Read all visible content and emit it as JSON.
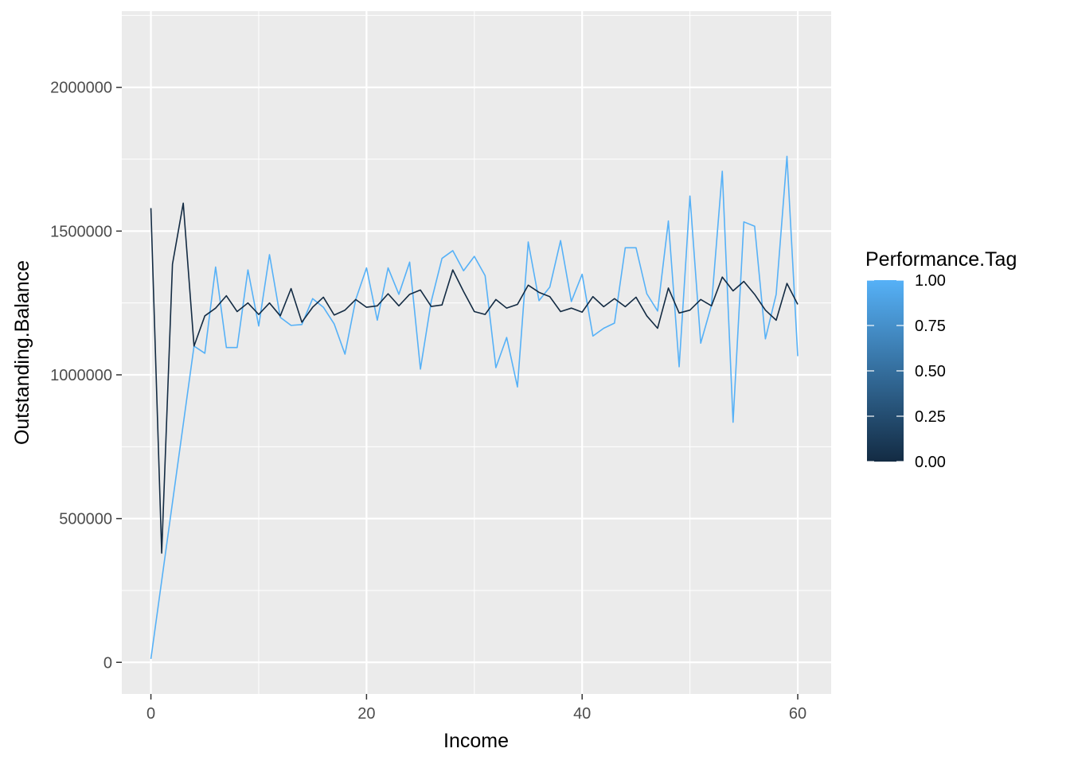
{
  "chart_data": {
    "type": "line",
    "title": "",
    "xlabel": "Income",
    "ylabel": "Outstanding.Balance",
    "xlim": [
      -2.7,
      63.1
    ],
    "ylim": [
      -110000,
      2265000
    ],
    "x_ticks": [
      0,
      20,
      40,
      60
    ],
    "y_ticks": [
      0,
      500000,
      1000000,
      1500000,
      2000000
    ],
    "y_tick_labels": [
      "0",
      "500000",
      "1000000",
      "1500000",
      "2000000"
    ],
    "grid": true,
    "legend": {
      "title": "Performance.Tag",
      "placement": "right",
      "ticks": [
        "1.00",
        "0.75",
        "0.50",
        "0.25",
        "0.00"
      ],
      "tick_values": [
        1.0,
        0.75,
        0.5,
        0.25,
        0.0
      ],
      "low_color": "#132B43",
      "high_color": "#56B1F7"
    },
    "colors": {
      "panel": "#EBEBEB",
      "grid": "#FFFFFF",
      "tag0": "#132B43",
      "tag1": "#56B1F7"
    },
    "series": [
      {
        "tag": 0,
        "x": [
          0,
          1,
          2,
          3,
          4,
          5,
          6,
          7,
          8,
          9,
          10,
          11,
          12,
          13,
          14,
          15,
          16,
          17,
          18,
          19,
          20,
          21,
          22,
          23,
          24,
          25,
          26,
          27,
          28,
          29,
          30,
          31,
          32,
          33,
          34,
          35,
          36,
          37,
          38,
          39,
          40,
          41,
          42,
          43,
          44,
          45,
          46,
          47,
          48,
          49,
          50,
          51,
          52,
          53,
          54,
          55,
          56,
          57,
          58,
          59,
          60
        ],
        "y": [
          1580000,
          380000,
          1385000,
          1597000,
          1100000,
          1205000,
          1232000,
          1275000,
          1220000,
          1250000,
          1210000,
          1250000,
          1205000,
          1300000,
          1183000,
          1235000,
          1270000,
          1208000,
          1225000,
          1262000,
          1235000,
          1240000,
          1282000,
          1240000,
          1280000,
          1295000,
          1238000,
          1243000,
          1365000,
          1290000,
          1220000,
          1210000,
          1262000,
          1232000,
          1245000,
          1312000,
          1287000,
          1272000,
          1220000,
          1232000,
          1218000,
          1272000,
          1237000,
          1265000,
          1237000,
          1270000,
          1205000,
          1162000,
          1302000,
          1215000,
          1225000,
          1262000,
          1240000,
          1340000,
          1292000,
          1325000,
          1280000,
          1225000,
          1190000,
          1318000,
          1245000
        ]
      },
      {
        "tag": 1,
        "x": [
          0,
          4,
          5,
          6,
          7,
          8,
          9,
          10,
          11,
          12,
          13,
          14,
          15,
          16,
          17,
          18,
          19,
          20,
          21,
          22,
          23,
          24,
          25,
          26,
          27,
          28,
          29,
          30,
          31,
          32,
          33,
          34,
          35,
          36,
          37,
          38,
          39,
          40,
          41,
          42,
          43,
          44,
          45,
          46,
          47,
          48,
          49,
          50,
          51,
          52,
          53,
          54,
          55,
          56,
          57,
          58,
          59,
          60
        ],
        "y": [
          12000,
          1100000,
          1075000,
          1375000,
          1095000,
          1095000,
          1365000,
          1170000,
          1418000,
          1200000,
          1172000,
          1175000,
          1265000,
          1235000,
          1177000,
          1072000,
          1262000,
          1372000,
          1190000,
          1372000,
          1280000,
          1392000,
          1020000,
          1255000,
          1405000,
          1432000,
          1362000,
          1412000,
          1345000,
          1025000,
          1130000,
          958000,
          1462000,
          1258000,
          1305000,
          1467000,
          1255000,
          1350000,
          1135000,
          1162000,
          1180000,
          1442000,
          1442000,
          1282000,
          1222000,
          1535000,
          1028000,
          1622000,
          1110000,
          1242000,
          1708000,
          835000,
          1532000,
          1517000,
          1125000,
          1280000,
          1760000,
          1065000
        ]
      }
    ]
  }
}
